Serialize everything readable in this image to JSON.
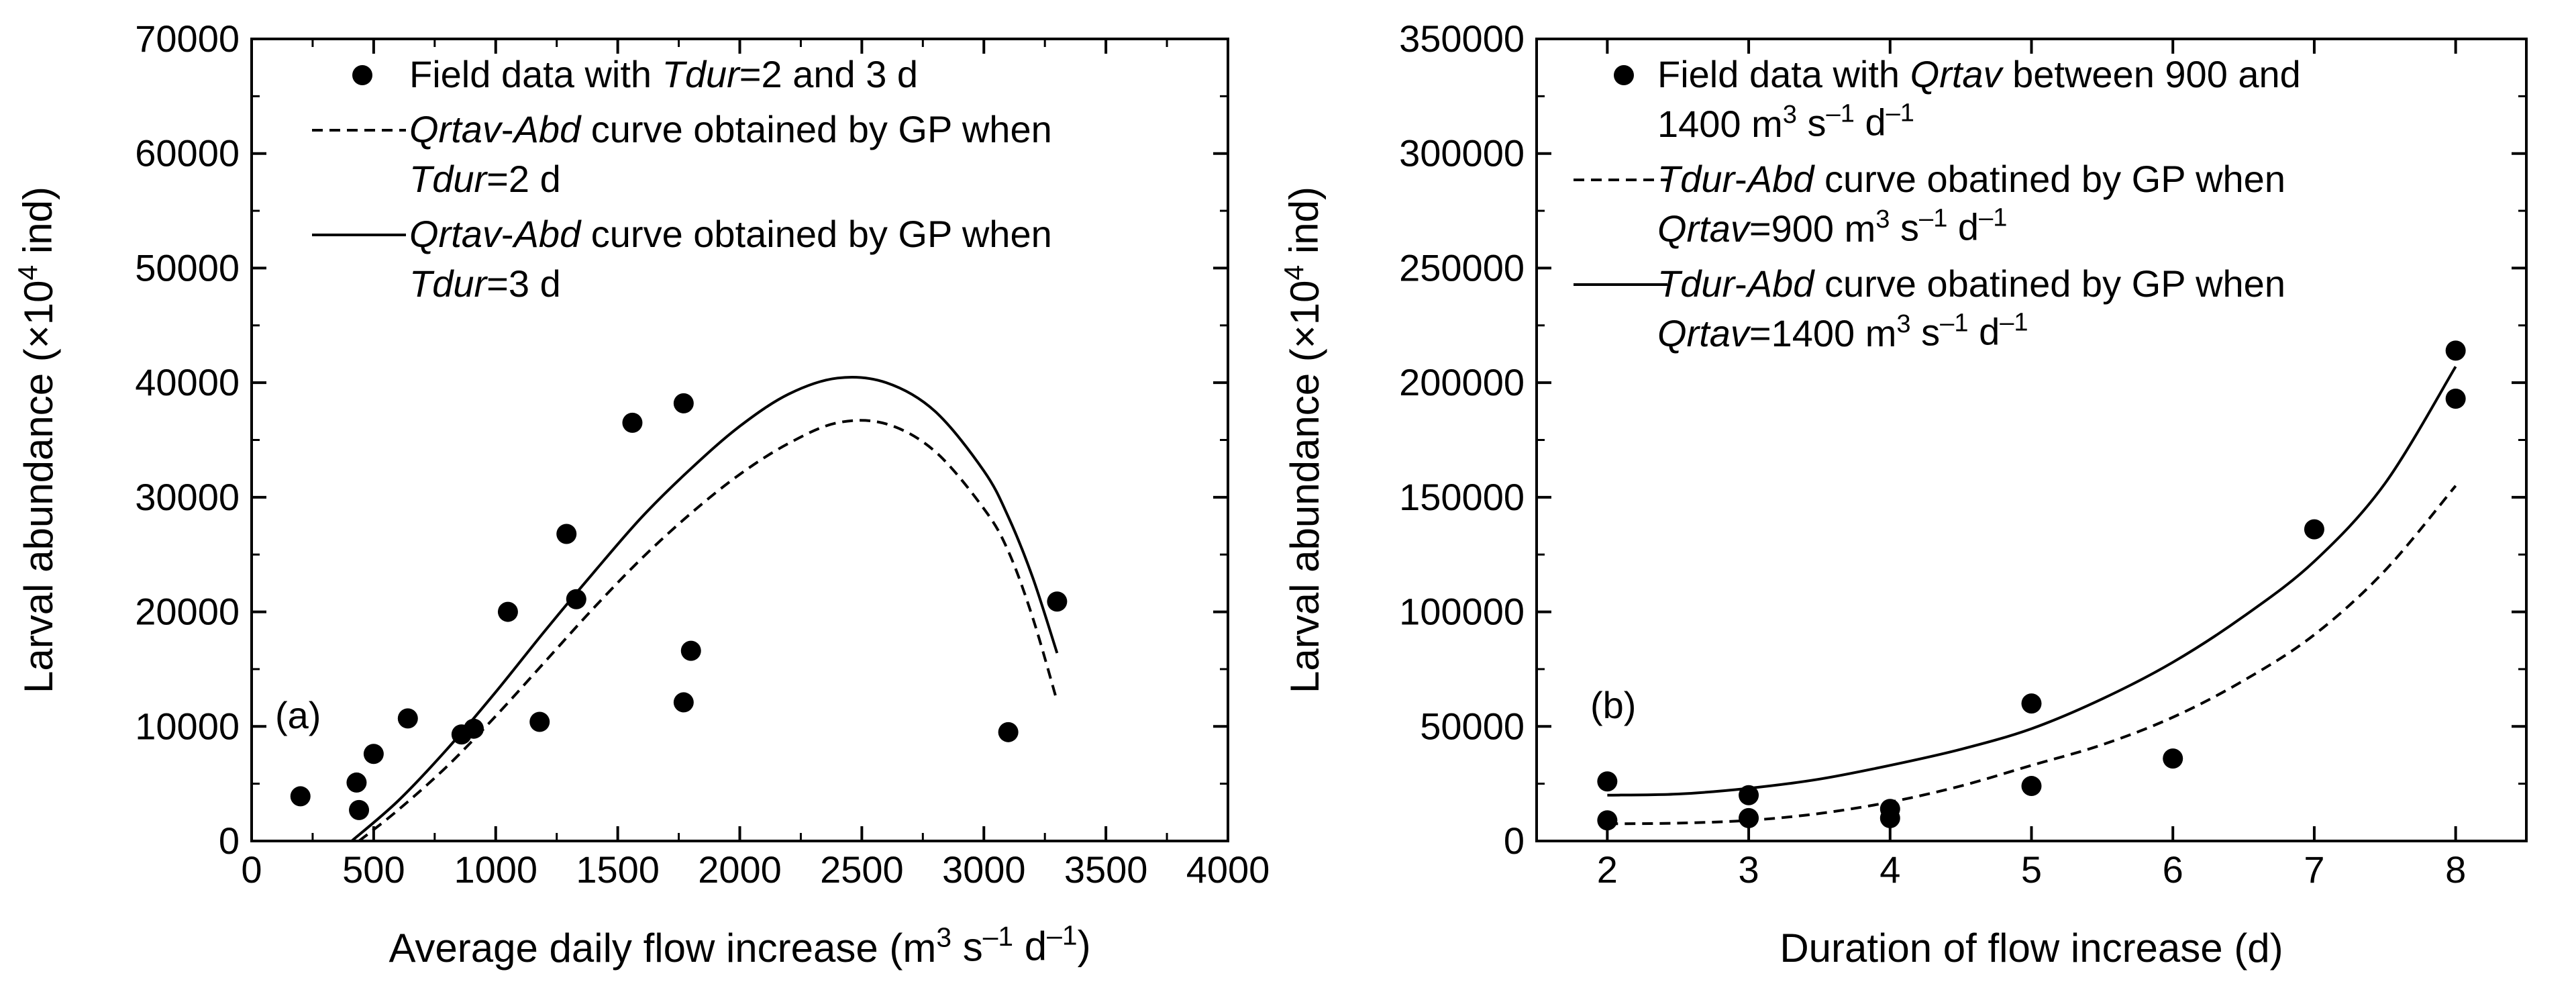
{
  "chart_data": [
    {
      "type": "scatter",
      "panel_label": "(a)",
      "xlabel": "Average daily flow increase (m³ s⁻¹ d⁻¹)",
      "ylabel": "Larval abundance (×10⁴ ind)",
      "xlim": [
        0,
        4000
      ],
      "ylim": [
        0,
        70000
      ],
      "x_ticks": [
        0,
        500,
        1000,
        1500,
        2000,
        2500,
        3000,
        3500,
        4000
      ],
      "y_ticks": [
        0,
        10000,
        20000,
        30000,
        40000,
        50000,
        60000,
        70000
      ],
      "legend_position": "top-left",
      "series": [
        {
          "name": "Field data with Tdur=2 and 3 d",
          "style": "marker",
          "points": [
            [
              200,
              3900
            ],
            [
              430,
              5100
            ],
            [
              440,
              2700
            ],
            [
              500,
              7600
            ],
            [
              640,
              10700
            ],
            [
              860,
              9300
            ],
            [
              910,
              9800
            ],
            [
              1050,
              20000
            ],
            [
              1180,
              10400
            ],
            [
              1290,
              26800
            ],
            [
              1330,
              21100
            ],
            [
              1560,
              36500
            ],
            [
              1770,
              38200
            ],
            [
              1770,
              12100
            ],
            [
              1800,
              16600
            ],
            [
              3100,
              9500
            ],
            [
              3300,
              20900
            ]
          ]
        },
        {
          "name": "Qrtav-Abd curve obtained by GP when Tdur=2 d",
          "style": "dashed",
          "points": [
            [
              440,
              0
            ],
            [
              600,
              2700
            ],
            [
              800,
              6500
            ],
            [
              1000,
              10900
            ],
            [
              1200,
              15600
            ],
            [
              1400,
              20300
            ],
            [
              1600,
              24700
            ],
            [
              1800,
              28600
            ],
            [
              2000,
              32000
            ],
            [
              2200,
              34700
            ],
            [
              2400,
              36500
            ],
            [
              2600,
              36400
            ],
            [
              2800,
              34000
            ],
            [
              3000,
              29000
            ],
            [
              3100,
              25300
            ],
            [
              3200,
              19500
            ],
            [
              3300,
              12200
            ]
          ]
        },
        {
          "name": "Qrtav-Abd curve obtained by GP when Tdur=3 d",
          "style": "solid",
          "points": [
            [
              410,
              0
            ],
            [
              600,
              3500
            ],
            [
              800,
              8000
            ],
            [
              1000,
              13000
            ],
            [
              1200,
              18300
            ],
            [
              1400,
              23400
            ],
            [
              1600,
              28300
            ],
            [
              1800,
              32500
            ],
            [
              2000,
              36200
            ],
            [
              2200,
              39000
            ],
            [
              2400,
              40400
            ],
            [
              2600,
              40000
            ],
            [
              2800,
              37500
            ],
            [
              3000,
              32300
            ],
            [
              3100,
              28300
            ],
            [
              3200,
              23000
            ],
            [
              3300,
              16400
            ]
          ]
        }
      ]
    },
    {
      "type": "scatter",
      "panel_label": "(b)",
      "xlabel": "Duration of flow increase (d)",
      "ylabel": "Larval abundance (×10⁴ ind)",
      "xlim": [
        1.5,
        8.5
      ],
      "ylim": [
        0,
        350000
      ],
      "x_ticks": [
        2,
        3,
        4,
        5,
        6,
        7,
        8
      ],
      "y_ticks": [
        0,
        50000,
        100000,
        150000,
        200000,
        250000,
        300000,
        350000
      ],
      "legend_position": "top-left",
      "series": [
        {
          "name": "Field data with Qrtav between 900 and 1400 m³ s⁻¹ d⁻¹",
          "style": "marker",
          "points": [
            [
              2,
              26000
            ],
            [
              2,
              9000
            ],
            [
              3,
              20000
            ],
            [
              3,
              10000
            ],
            [
              4,
              14000
            ],
            [
              4,
              10000
            ],
            [
              5,
              60000
            ],
            [
              5,
              24000
            ],
            [
              6,
              36000
            ],
            [
              7,
              136000
            ],
            [
              8,
              214000
            ],
            [
              8,
              193000
            ]
          ]
        },
        {
          "name": "Tdur-Abd curve obatined by GP when Qrtav=900 m³ s⁻¹ d⁻¹",
          "style": "dashed",
          "points": [
            [
              2,
              7500
            ],
            [
              2.5,
              7800
            ],
            [
              3,
              9000
            ],
            [
              3.5,
              12000
            ],
            [
              4,
              17000
            ],
            [
              4.5,
              24000
            ],
            [
              5,
              33000
            ],
            [
              5.5,
              42000
            ],
            [
              6,
              54000
            ],
            [
              6.5,
              70000
            ],
            [
              7,
              90000
            ],
            [
              7.5,
              118000
            ],
            [
              8,
              155000
            ]
          ]
        },
        {
          "name": "Tdur-Abd curve obatined by GP when Qrtav=1400 m³ s⁻¹ d⁻¹",
          "style": "solid",
          "points": [
            [
              2,
              20000
            ],
            [
              2.5,
              20500
            ],
            [
              3,
              23000
            ],
            [
              3.5,
              27000
            ],
            [
              4,
              33000
            ],
            [
              4.5,
              40000
            ],
            [
              5,
              49000
            ],
            [
              5.5,
              62000
            ],
            [
              6,
              78000
            ],
            [
              6.5,
              98000
            ],
            [
              7,
              122000
            ],
            [
              7.5,
              156000
            ],
            [
              8,
              207000
            ]
          ]
        }
      ]
    }
  ]
}
